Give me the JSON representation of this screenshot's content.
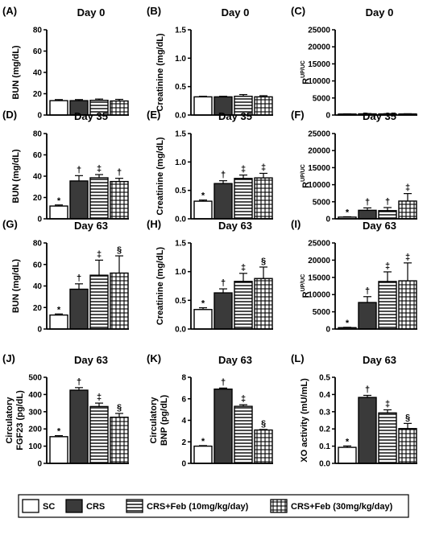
{
  "legend": [
    {
      "label": "SC",
      "pattern": "white"
    },
    {
      "label": "CRS",
      "pattern": "dark"
    },
    {
      "label": "CRS+Feb (10mg/kg/day)",
      "pattern": "hstripe"
    },
    {
      "label": "CRS+Feb (30mg/kg/day)",
      "pattern": "grid"
    }
  ],
  "colors": {
    "dark_bar": "#3a3a3a",
    "axis": "#000000",
    "fill_light": "#ffffff"
  },
  "chart_data": [
    {
      "type": "bar",
      "panel": "(A)",
      "title": "Day 0",
      "ylabel": [
        "BUN (mg/dL)"
      ],
      "ylim": [
        0,
        80
      ],
      "yticks": [
        "0",
        "20",
        "40",
        "60",
        "80"
      ],
      "categories": [
        "SC",
        "CRS",
        "CRS+Feb (10mg/kg/day)",
        "CRS+Feb (30mg/kg/day)"
      ],
      "values": [
        13.5,
        13.5,
        13.8,
        13.2
      ],
      "errors": [
        1.0,
        1.0,
        1.2,
        1.5
      ],
      "marks": [
        "",
        "",
        "",
        ""
      ]
    },
    {
      "type": "bar",
      "panel": "(B)",
      "title": "Day 0",
      "ylabel": [
        "Creatinine (mg/dL)"
      ],
      "ylim": [
        0,
        1.5
      ],
      "yticks": [
        "0.0",
        "0.5",
        "1.0",
        "1.5"
      ],
      "categories": [
        "SC",
        "CRS",
        "CRS+Feb (10mg/kg/day)",
        "CRS+Feb (30mg/kg/day)"
      ],
      "values": [
        0.32,
        0.32,
        0.33,
        0.32
      ],
      "errors": [
        0.01,
        0.01,
        0.03,
        0.02
      ],
      "marks": [
        "",
        "",
        "",
        ""
      ]
    },
    {
      "type": "bar",
      "panel": "(C)",
      "title": "Day 0",
      "ylabel": [
        "R",
        "UP/UC"
      ],
      "ylim": [
        0,
        25000
      ],
      "yticks": [
        "0",
        "5000",
        "10000",
        "15000",
        "20000",
        "25000"
      ],
      "categories": [
        "SC",
        "CRS",
        "CRS+Feb (10mg/kg/day)",
        "CRS+Feb (30mg/kg/day)"
      ],
      "values": [
        300,
        350,
        330,
        320
      ],
      "errors": [
        60,
        80,
        70,
        60
      ],
      "marks": [
        "",
        "",
        "",
        ""
      ]
    },
    {
      "type": "bar",
      "panel": "(D)",
      "title": "Day 35",
      "ylabel": [
        "BUN (mg/dL)"
      ],
      "ylim": [
        0,
        80
      ],
      "yticks": [
        "0",
        "20",
        "40",
        "60",
        "80"
      ],
      "categories": [
        "SC",
        "CRS",
        "CRS+Feb (10mg/kg/day)",
        "CRS+Feb (30mg/kg/day)"
      ],
      "values": [
        12,
        35.5,
        38.5,
        35
      ],
      "errors": [
        1.0,
        5.0,
        3.0,
        3.0
      ],
      "marks": [
        "*",
        "†",
        "‡",
        "†"
      ]
    },
    {
      "type": "bar",
      "panel": "(E)",
      "title": "Day 35",
      "ylabel": [
        "Creatinine (mg/dL)"
      ],
      "ylim": [
        0,
        1.5
      ],
      "yticks": [
        "0.0",
        "0.5",
        "1.0",
        "1.5"
      ],
      "categories": [
        "SC",
        "CRS",
        "CRS+Feb (10mg/kg/day)",
        "CRS+Feb (30mg/kg/day)"
      ],
      "values": [
        0.31,
        0.62,
        0.71,
        0.72
      ],
      "errors": [
        0.02,
        0.05,
        0.06,
        0.08
      ],
      "marks": [
        "*",
        "†",
        "‡",
        "‡"
      ]
    },
    {
      "type": "bar",
      "panel": "(F)",
      "title": "Day 35",
      "ylabel": [
        "R",
        "UP/UC"
      ],
      "ylim": [
        0,
        25000
      ],
      "yticks": [
        "0",
        "5000",
        "10000",
        "15000",
        "20000",
        "25000"
      ],
      "categories": [
        "SC",
        "CRS",
        "CRS+Feb (10mg/kg/day)",
        "CRS+Feb (30mg/kg/day)"
      ],
      "values": [
        500,
        2500,
        2400,
        5200
      ],
      "errors": [
        100,
        700,
        900,
        2200
      ],
      "marks": [
        "*",
        "†",
        "†",
        "‡"
      ]
    },
    {
      "type": "bar",
      "panel": "(G)",
      "title": "Day 63",
      "ylabel": [
        "BUN (mg/dL)"
      ],
      "ylim": [
        0,
        80
      ],
      "yticks": [
        "0",
        "20",
        "40",
        "60",
        "80"
      ],
      "categories": [
        "SC",
        "CRS",
        "CRS+Feb (10mg/kg/day)",
        "CRS+Feb (30mg/kg/day)"
      ],
      "values": [
        13,
        37,
        50,
        52
      ],
      "errors": [
        1.0,
        5.0,
        14.0,
        16.0
      ],
      "marks": [
        "*",
        "†",
        "‡",
        "§"
      ]
    },
    {
      "type": "bar",
      "panel": "(H)",
      "title": "Day 63",
      "ylabel": [
        "Creatinine (mg/dL)"
      ],
      "ylim": [
        0,
        1.5
      ],
      "yticks": [
        "0.0",
        "0.5",
        "1.0",
        "1.5"
      ],
      "categories": [
        "SC",
        "CRS",
        "CRS+Feb (10mg/kg/day)",
        "CRS+Feb (30mg/kg/day)"
      ],
      "values": [
        0.34,
        0.63,
        0.83,
        0.88
      ],
      "errors": [
        0.03,
        0.07,
        0.14,
        0.2
      ],
      "marks": [
        "*",
        "†",
        "‡",
        "§"
      ]
    },
    {
      "type": "bar",
      "panel": "(I)",
      "title": "Day 63",
      "ylabel": [
        "R",
        "UP/UC"
      ],
      "ylim": [
        0,
        25000
      ],
      "yticks": [
        "0",
        "5000",
        "10000",
        "15000",
        "20000",
        "25000"
      ],
      "categories": [
        "SC",
        "CRS",
        "CRS+Feb (10mg/kg/day)",
        "CRS+Feb (30mg/kg/day)"
      ],
      "values": [
        400,
        7700,
        13800,
        14000
      ],
      "errors": [
        100,
        1700,
        2800,
        5200
      ],
      "marks": [
        "*",
        "†",
        "‡",
        "‡"
      ]
    },
    {
      "type": "bar",
      "panel": "(J)",
      "title": "Day 63",
      "ylabel": [
        "Circulatory",
        "FGF23 (pg/dL)"
      ],
      "ylim": [
        0,
        500
      ],
      "yticks": [
        "0",
        "100",
        "200",
        "300",
        "400",
        "500"
      ],
      "categories": [
        "SC",
        "CRS",
        "CRS+Feb (10mg/kg/day)",
        "CRS+Feb (30mg/kg/day)"
      ],
      "values": [
        155,
        425,
        330,
        268
      ],
      "errors": [
        6,
        15,
        20,
        22
      ],
      "marks": [
        "*",
        "†",
        "‡",
        "§"
      ]
    },
    {
      "type": "bar",
      "panel": "(K)",
      "title": "Day 63",
      "ylabel": [
        "Circulatory",
        "BNP (pg/dL)"
      ],
      "ylim": [
        0,
        8
      ],
      "yticks": [
        "0",
        "2",
        "4",
        "6",
        "8"
      ],
      "categories": [
        "SC",
        "CRS",
        "CRS+Feb (10mg/kg/day)",
        "CRS+Feb (30mg/kg/day)"
      ],
      "values": [
        1.6,
        6.9,
        5.3,
        3.1
      ],
      "errors": [
        0.05,
        0.1,
        0.15,
        0.05
      ],
      "marks": [
        "*",
        "†",
        "‡",
        "§"
      ]
    },
    {
      "type": "bar",
      "panel": "(L)",
      "title": "Day 63",
      "ylabel": [
        "XO activity (mU/mL)"
      ],
      "ylim": [
        0,
        0.5
      ],
      "yticks": [
        "0.0",
        "0.1",
        "0.2",
        "0.3",
        "0.4",
        "0.5"
      ],
      "categories": [
        "SC",
        "CRS",
        "CRS+Feb (10mg/kg/day)",
        "CRS+Feb (30mg/kg/day)"
      ],
      "values": [
        0.093,
        0.383,
        0.293,
        0.202
      ],
      "errors": [
        0.008,
        0.012,
        0.018,
        0.03
      ],
      "marks": [
        "*",
        "†",
        "‡",
        "§"
      ]
    }
  ]
}
